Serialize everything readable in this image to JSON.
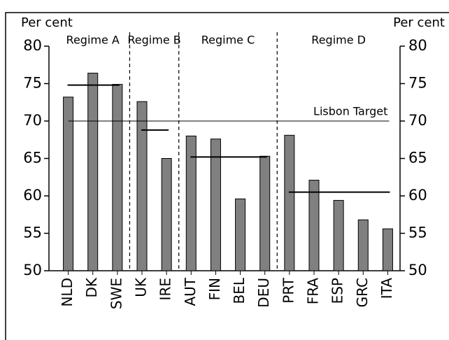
{
  "chart_data": {
    "type": "bar",
    "y_axis_label": "Per cent",
    "y2_axis_label": "Per cent",
    "categories": [
      "NLD",
      "DK",
      "SWE",
      "UK",
      "IRE",
      "AUT",
      "FIN",
      "BEL",
      "DEU",
      "PRT",
      "FRA",
      "ESP",
      "GRC",
      "ITA"
    ],
    "values": [
      73.2,
      76.4,
      74.9,
      72.6,
      65.0,
      68.0,
      67.6,
      59.6,
      65.3,
      68.1,
      62.1,
      59.4,
      56.8,
      55.6
    ],
    "color": "#808080",
    "ylim": [
      50,
      80
    ],
    "yticks": [
      50,
      55,
      60,
      65,
      70,
      75,
      80
    ],
    "y2lim": [
      50,
      80
    ],
    "y2ticks": [
      50,
      55,
      60,
      65,
      70,
      75,
      80
    ],
    "target": {
      "label": "Lisbon Target",
      "value": 70
    },
    "regimes": [
      {
        "name": "Regime A",
        "categories": [
          "NLD",
          "DK",
          "SWE"
        ],
        "average": 74.8
      },
      {
        "name": "Regime B",
        "categories": [
          "UK",
          "IRE"
        ],
        "average": 68.8
      },
      {
        "name": "Regime C",
        "categories": [
          "AUT",
          "FIN",
          "BEL",
          "DEU"
        ],
        "average": 65.2
      },
      {
        "name": "Regime D",
        "categories": [
          "PRT",
          "FRA",
          "ESP",
          "GRC",
          "ITA"
        ],
        "average": 60.5
      }
    ]
  }
}
